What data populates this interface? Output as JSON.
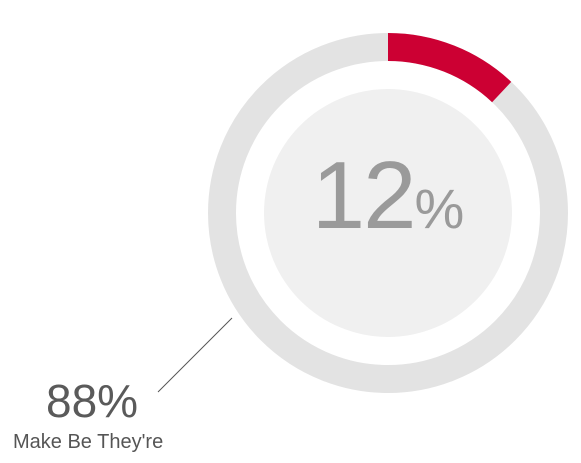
{
  "chart_data": {
    "type": "pie",
    "style": "donut",
    "categories": [
      "",
      "Make Be They're"
    ],
    "values": [
      12,
      88
    ],
    "value_unit": "%",
    "center_label": {
      "number": "12",
      "unit": "%"
    },
    "callout": {
      "number": "88",
      "unit": "%",
      "label": "Make Be They're"
    },
    "colors": {
      "highlight": "#cc0033",
      "remainder": "#e3e3e3",
      "inner_disc": "#f0f0f0",
      "center_text": "#9a9a9a",
      "callout_line": "#555555"
    }
  }
}
